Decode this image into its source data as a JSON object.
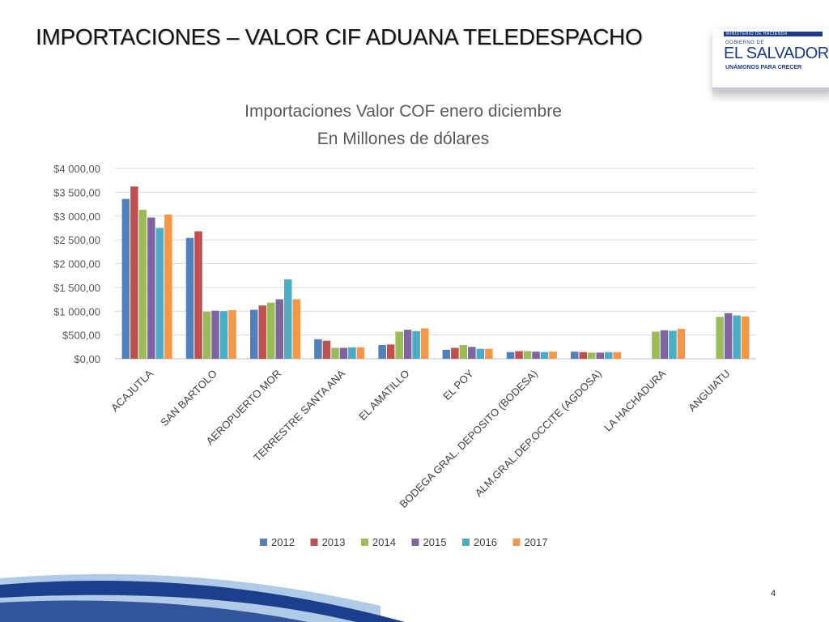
{
  "slide": {
    "title": "IMPORTACIONES – VALOR CIF ADUANA TELEDESPACHO",
    "page_number": "4"
  },
  "logo": {
    "ministry": "MINISTERIO DE HACIENDA",
    "gobierno": "GOBIERNO DE",
    "country": "EL SALVADOR",
    "slogan": "UNÁMONOS PARA CRECER"
  },
  "colors": {
    "2012": "#4f81bd",
    "2013": "#c0504d",
    "2014": "#9bbb59",
    "2015": "#8064a2",
    "2016": "#4bacc6",
    "2017": "#f79646",
    "swoosh_dark": "#1b3f8c",
    "swoosh_light": "#8fb4de"
  },
  "chart_data": {
    "type": "bar",
    "title": [
      "Importaciones Valor COF enero diciembre",
      "En Millones de dólares"
    ],
    "xlabel": "",
    "ylabel": "",
    "ylim": [
      0,
      4000
    ],
    "yticks": [
      0,
      500,
      1000,
      1500,
      2000,
      2500,
      3000,
      3500,
      4000
    ],
    "ytick_labels": [
      "$0,00",
      "$500,00",
      "$1 000,00",
      "$1 500,00",
      "$2 000,00",
      "$2 500,00",
      "$3 000,00",
      "$3 500,00",
      "$4 000,00"
    ],
    "grid": true,
    "legend_position": "bottom",
    "categories": [
      "ACAJUTLA",
      "SAN BARTOLO",
      "AEROPUERTO MOR",
      "TERRESTRE SANTA ANA",
      "EL AMATILLO",
      "EL POY",
      "BODEGA GRAL. DEPOSITO (BODESA)",
      "ALM.GRAL.DEP.OCCITE (AGDOSA)",
      "LA HACHADURA",
      "ANGUIATU"
    ],
    "series": [
      {
        "name": "2012",
        "values": [
          3360,
          2540,
          1030,
          410,
          290,
          190,
          140,
          150,
          null,
          null
        ]
      },
      {
        "name": "2013",
        "values": [
          3620,
          2680,
          1120,
          380,
          300,
          230,
          160,
          140,
          null,
          null
        ]
      },
      {
        "name": "2014",
        "values": [
          3130,
          990,
          1180,
          230,
          570,
          290,
          160,
          130,
          570,
          880
        ]
      },
      {
        "name": "2015",
        "values": [
          2970,
          1010,
          1250,
          230,
          610,
          250,
          150,
          130,
          600,
          960
        ]
      },
      {
        "name": "2016",
        "values": [
          2750,
          1000,
          1670,
          240,
          580,
          210,
          140,
          140,
          590,
          910
        ]
      },
      {
        "name": "2017",
        "values": [
          3030,
          1020,
          1250,
          240,
          640,
          210,
          150,
          140,
          630,
          890
        ]
      }
    ]
  }
}
